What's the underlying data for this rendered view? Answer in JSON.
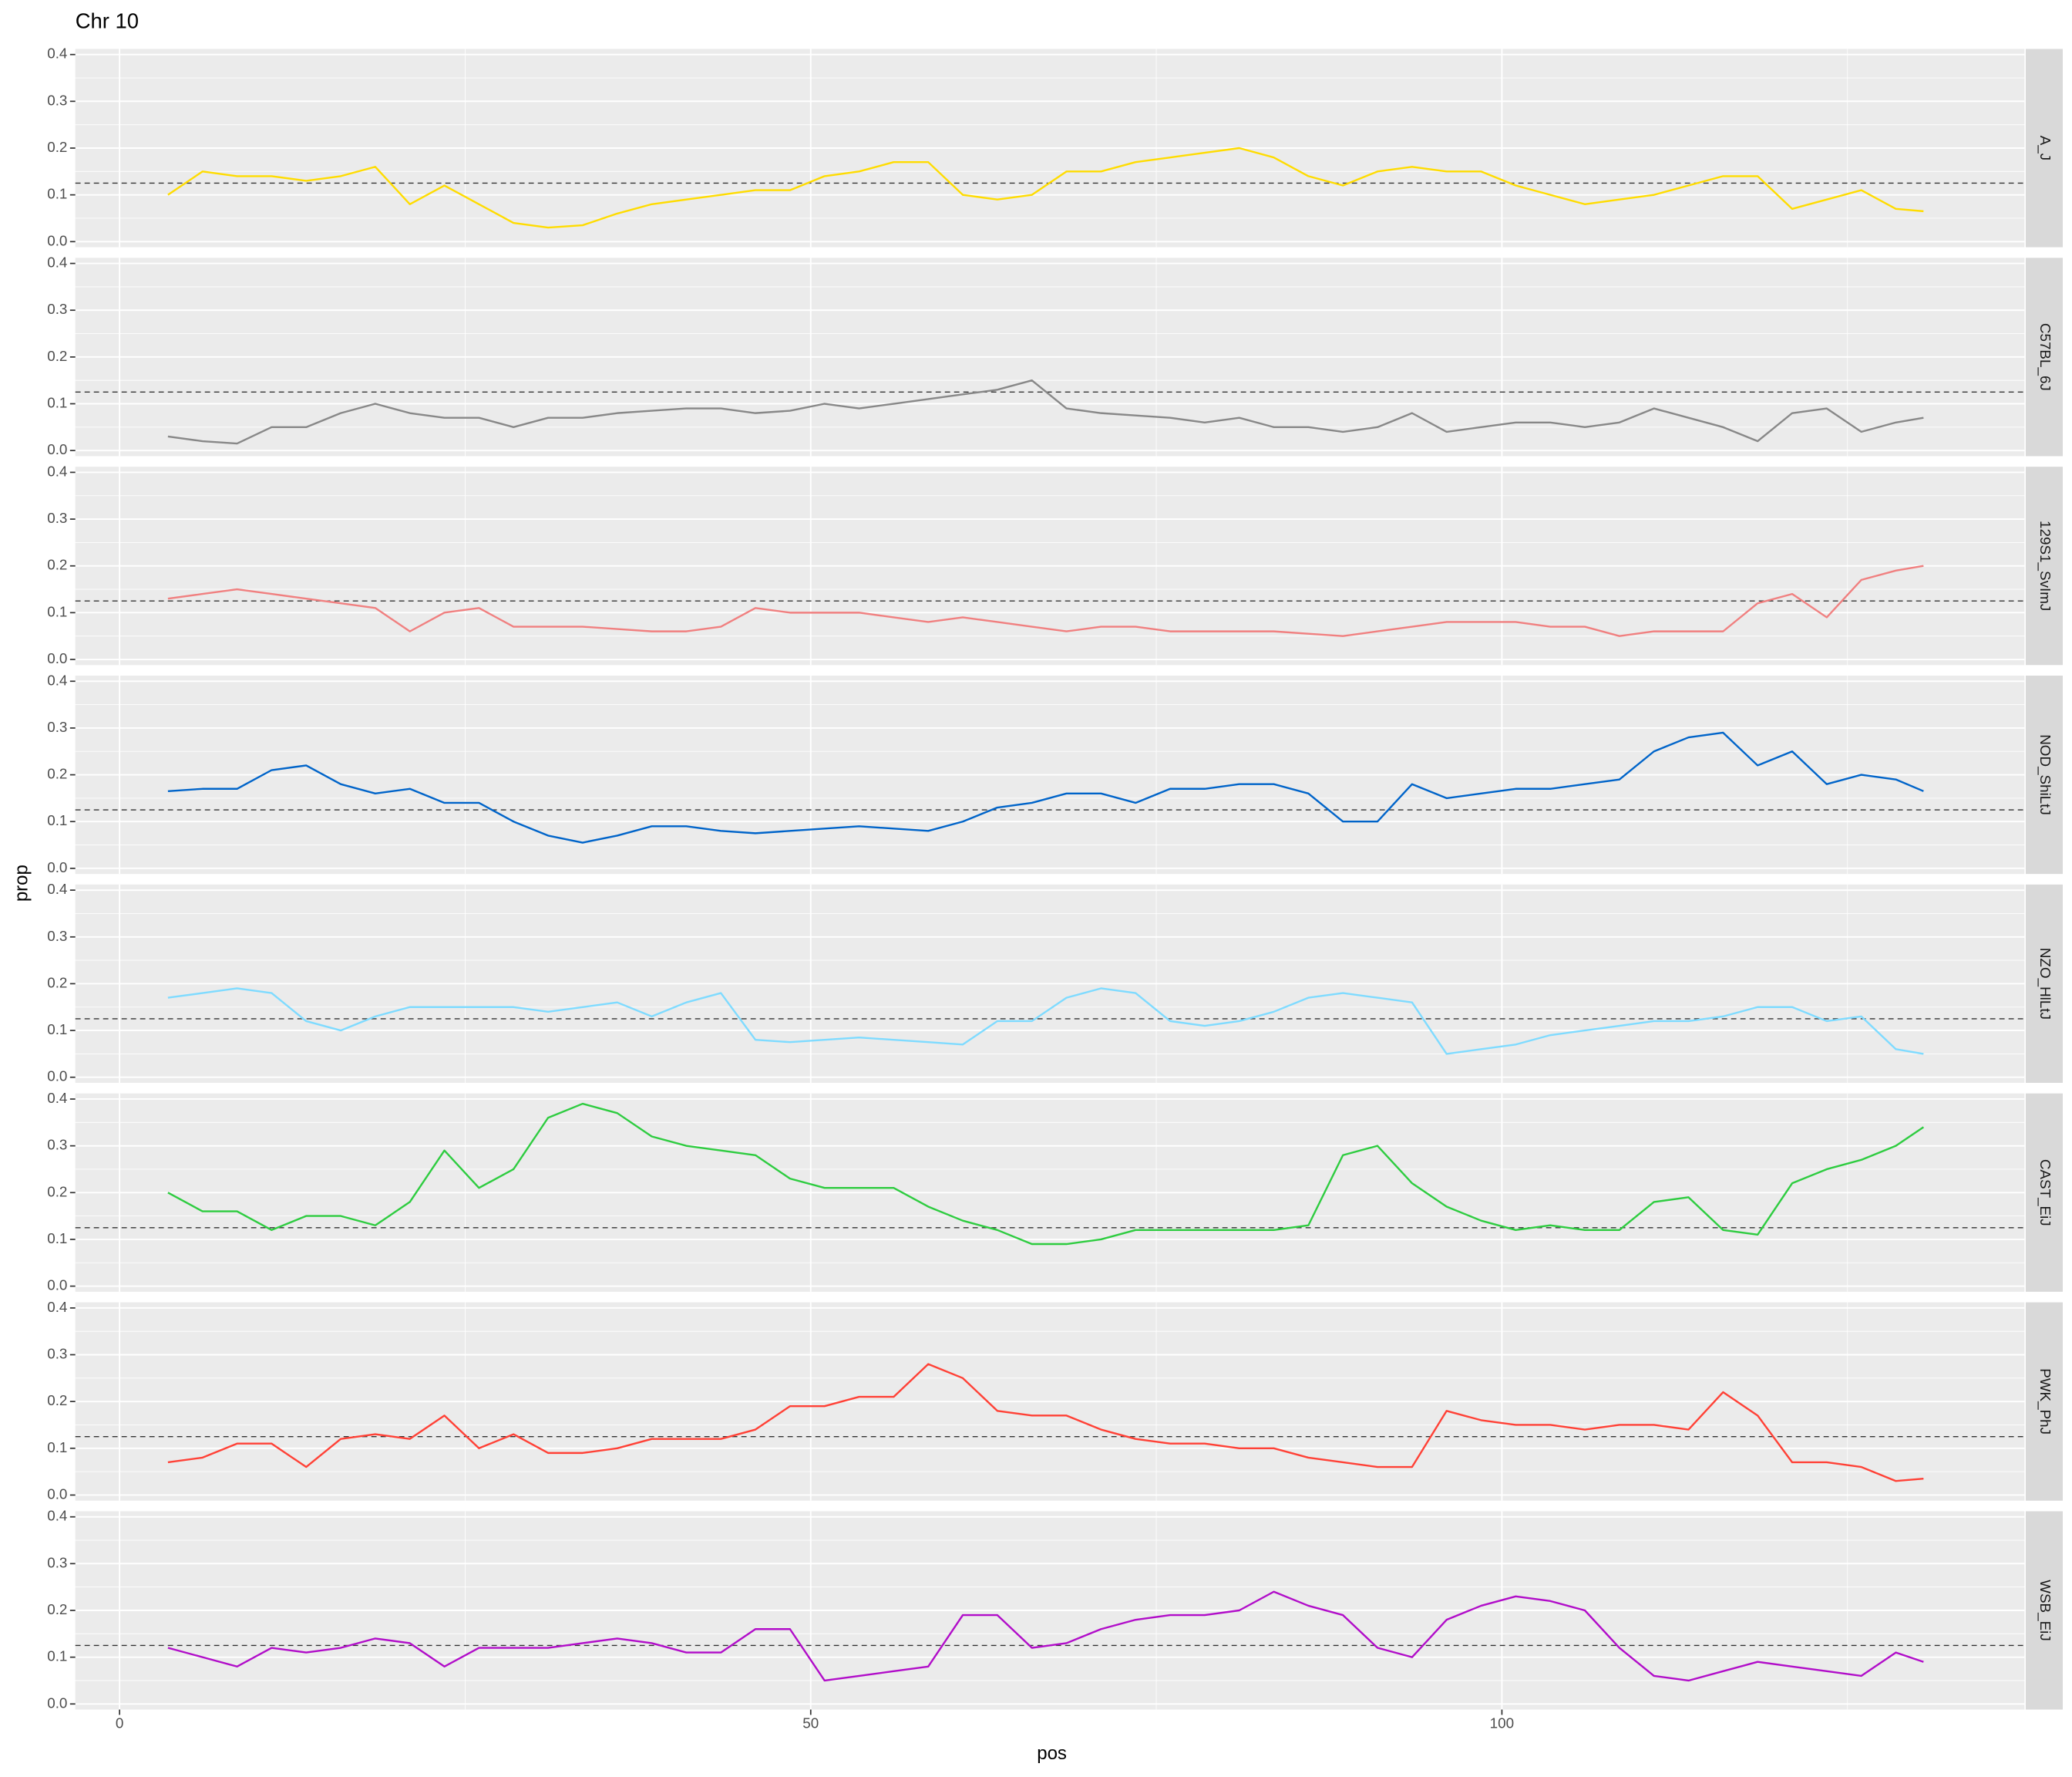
{
  "chart_data": {
    "type": "line",
    "title": "Chr 10",
    "xlabel": "pos",
    "ylabel": "prop",
    "xlim": [
      -3.2,
      137.8
    ],
    "xticks": [
      0,
      50,
      100
    ],
    "ylim": [
      -0.012,
      0.412
    ],
    "yticks": [
      {
        "value": 0,
        "label": "0.0"
      },
      0.1,
      0.2,
      0.3,
      0.4
    ],
    "grid": true,
    "hline": 0.125,
    "x": [
      3.5,
      6,
      8.5,
      11,
      13.5,
      16,
      18.5,
      21,
      23.5,
      26,
      28.5,
      31,
      33.5,
      36,
      38.5,
      41,
      43.5,
      46,
      48.5,
      51,
      53.5,
      56,
      58.5,
      61,
      63.5,
      66,
      68.5,
      71,
      73.5,
      76,
      78.5,
      81,
      83.5,
      86,
      88.5,
      91,
      93.5,
      96,
      98.5,
      101,
      103.5,
      106,
      108.5,
      111,
      113.5,
      116,
      118.5,
      121,
      123.5,
      126,
      128.5,
      130.5
    ],
    "series": [
      {
        "name": "A_J",
        "color": "#FFDC00",
        "values": [
          0.1,
          0.15,
          0.14,
          0.14,
          0.13,
          0.14,
          0.16,
          0.08,
          0.12,
          0.08,
          0.04,
          0.03,
          0.035,
          0.06,
          0.08,
          0.09,
          0.1,
          0.11,
          0.11,
          0.14,
          0.15,
          0.17,
          0.17,
          0.1,
          0.09,
          0.1,
          0.15,
          0.15,
          0.17,
          0.18,
          0.19,
          0.2,
          0.18,
          0.14,
          0.12,
          0.15,
          0.16,
          0.15,
          0.15,
          0.12,
          0.1,
          0.08,
          0.09,
          0.1,
          0.12,
          0.14,
          0.14,
          0.07,
          0.09,
          0.11,
          0.07,
          0.065
        ]
      },
      {
        "name": "C57BL_6J",
        "color": "#888888",
        "values": [
          0.03,
          0.02,
          0.015,
          0.05,
          0.05,
          0.08,
          0.1,
          0.08,
          0.07,
          0.07,
          0.05,
          0.07,
          0.07,
          0.08,
          0.085,
          0.09,
          0.09,
          0.08,
          0.085,
          0.1,
          0.09,
          0.1,
          0.11,
          0.12,
          0.13,
          0.15,
          0.09,
          0.08,
          0.075,
          0.07,
          0.06,
          0.07,
          0.05,
          0.05,
          0.04,
          0.05,
          0.08,
          0.04,
          0.05,
          0.06,
          0.06,
          0.05,
          0.06,
          0.09,
          0.07,
          0.05,
          0.02,
          0.08,
          0.09,
          0.04,
          0.06,
          0.07
        ]
      },
      {
        "name": "129S1_SvImJ",
        "color": "#F08080",
        "values": [
          0.13,
          0.14,
          0.15,
          0.14,
          0.13,
          0.12,
          0.11,
          0.06,
          0.1,
          0.11,
          0.07,
          0.07,
          0.07,
          0.065,
          0.06,
          0.06,
          0.07,
          0.11,
          0.1,
          0.1,
          0.1,
          0.09,
          0.08,
          0.09,
          0.08,
          0.07,
          0.06,
          0.07,
          0.07,
          0.06,
          0.06,
          0.06,
          0.06,
          0.055,
          0.05,
          0.06,
          0.07,
          0.08,
          0.08,
          0.08,
          0.07,
          0.07,
          0.05,
          0.06,
          0.06,
          0.06,
          0.12,
          0.14,
          0.09,
          0.17,
          0.19,
          0.2
        ]
      },
      {
        "name": "NOD_ShiLtJ",
        "color": "#0064C9",
        "values": [
          0.165,
          0.17,
          0.17,
          0.21,
          0.22,
          0.18,
          0.16,
          0.17,
          0.14,
          0.14,
          0.1,
          0.07,
          0.055,
          0.07,
          0.09,
          0.09,
          0.08,
          0.075,
          0.08,
          0.085,
          0.09,
          0.085,
          0.08,
          0.1,
          0.13,
          0.14,
          0.16,
          0.16,
          0.14,
          0.17,
          0.17,
          0.18,
          0.18,
          0.16,
          0.1,
          0.1,
          0.18,
          0.15,
          0.16,
          0.17,
          0.17,
          0.18,
          0.19,
          0.25,
          0.28,
          0.29,
          0.22,
          0.25,
          0.18,
          0.2,
          0.19,
          0.165
        ]
      },
      {
        "name": "NZO_HlLtJ",
        "color": "#7FDBFF",
        "values": [
          0.17,
          0.18,
          0.19,
          0.18,
          0.12,
          0.1,
          0.13,
          0.15,
          0.15,
          0.15,
          0.15,
          0.14,
          0.15,
          0.16,
          0.13,
          0.16,
          0.18,
          0.08,
          0.075,
          0.08,
          0.085,
          0.08,
          0.075,
          0.07,
          0.12,
          0.12,
          0.17,
          0.19,
          0.18,
          0.12,
          0.11,
          0.12,
          0.14,
          0.17,
          0.18,
          0.17,
          0.16,
          0.05,
          0.06,
          0.07,
          0.09,
          0.1,
          0.11,
          0.12,
          0.12,
          0.13,
          0.15,
          0.15,
          0.12,
          0.13,
          0.06,
          0.05
        ]
      },
      {
        "name": "CAST_EiJ",
        "color": "#2ECC40",
        "values": [
          0.2,
          0.16,
          0.16,
          0.12,
          0.15,
          0.15,
          0.13,
          0.18,
          0.29,
          0.21,
          0.25,
          0.36,
          0.39,
          0.37,
          0.32,
          0.3,
          0.29,
          0.28,
          0.23,
          0.21,
          0.21,
          0.21,
          0.17,
          0.14,
          0.12,
          0.09,
          0.09,
          0.1,
          0.12,
          0.12,
          0.12,
          0.12,
          0.12,
          0.13,
          0.28,
          0.3,
          0.22,
          0.17,
          0.14,
          0.12,
          0.13,
          0.12,
          0.12,
          0.18,
          0.19,
          0.12,
          0.11,
          0.22,
          0.25,
          0.27,
          0.3,
          0.34
        ]
      },
      {
        "name": "PWK_PhJ",
        "color": "#FF4136",
        "values": [
          0.07,
          0.08,
          0.11,
          0.11,
          0.06,
          0.12,
          0.13,
          0.12,
          0.17,
          0.1,
          0.13,
          0.09,
          0.09,
          0.1,
          0.12,
          0.12,
          0.12,
          0.14,
          0.19,
          0.19,
          0.21,
          0.21,
          0.28,
          0.25,
          0.18,
          0.17,
          0.17,
          0.14,
          0.12,
          0.11,
          0.11,
          0.1,
          0.1,
          0.08,
          0.07,
          0.06,
          0.06,
          0.18,
          0.16,
          0.15,
          0.15,
          0.14,
          0.15,
          0.15,
          0.14,
          0.22,
          0.17,
          0.07,
          0.07,
          0.06,
          0.03,
          0.035
        ]
      },
      {
        "name": "WSB_EiJ",
        "color": "#B10DC9",
        "values": [
          0.12,
          0.1,
          0.08,
          0.12,
          0.11,
          0.12,
          0.14,
          0.13,
          0.08,
          0.12,
          0.12,
          0.12,
          0.13,
          0.14,
          0.13,
          0.11,
          0.11,
          0.16,
          0.16,
          0.05,
          0.06,
          0.07,
          0.08,
          0.19,
          0.19,
          0.12,
          0.13,
          0.16,
          0.18,
          0.19,
          0.19,
          0.2,
          0.24,
          0.21,
          0.19,
          0.12,
          0.1,
          0.18,
          0.21,
          0.23,
          0.22,
          0.2,
          0.12,
          0.06,
          0.05,
          0.07,
          0.09,
          0.08,
          0.07,
          0.06,
          0.11,
          0.09
        ]
      }
    ]
  }
}
